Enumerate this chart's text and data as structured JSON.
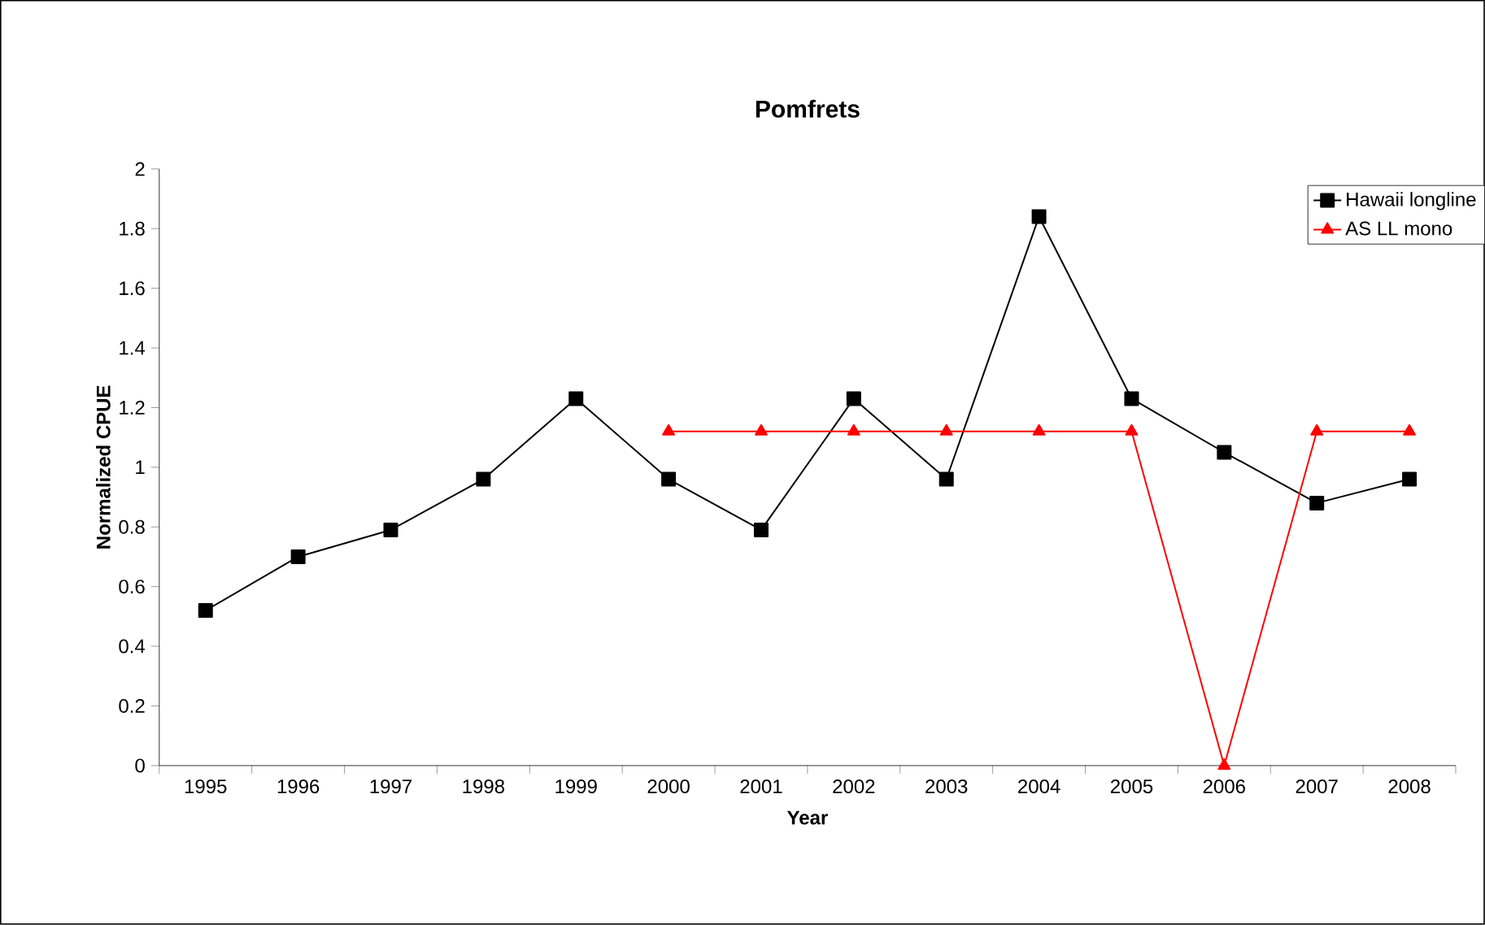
{
  "chart_data": {
    "type": "line",
    "title": "Pomfrets",
    "xlabel": "Year",
    "ylabel": "Normalized CPUE",
    "categories": [
      "1995",
      "1996",
      "1997",
      "1998",
      "1999",
      "2000",
      "2001",
      "2002",
      "2003",
      "2004",
      "2005",
      "2006",
      "2007",
      "2008"
    ],
    "ylim": [
      0,
      2
    ],
    "yticks": [
      0,
      0.2,
      0.4,
      0.6,
      0.8,
      1,
      1.2,
      1.4,
      1.6,
      1.8,
      2
    ],
    "grid": false,
    "legend": "top right",
    "series": [
      {
        "name": "Hawaii longline",
        "color": "#000000",
        "marker": "square",
        "values": [
          0.52,
          0.7,
          0.79,
          0.96,
          1.23,
          0.96,
          0.79,
          1.23,
          0.96,
          1.84,
          1.23,
          1.05,
          0.88,
          0.96
        ]
      },
      {
        "name": "AS LL mono",
        "color": "#ff0000",
        "marker": "triangle",
        "values": [
          null,
          null,
          null,
          null,
          null,
          1.12,
          1.12,
          1.12,
          1.12,
          1.12,
          1.12,
          0,
          1.12,
          1.12
        ]
      }
    ]
  }
}
